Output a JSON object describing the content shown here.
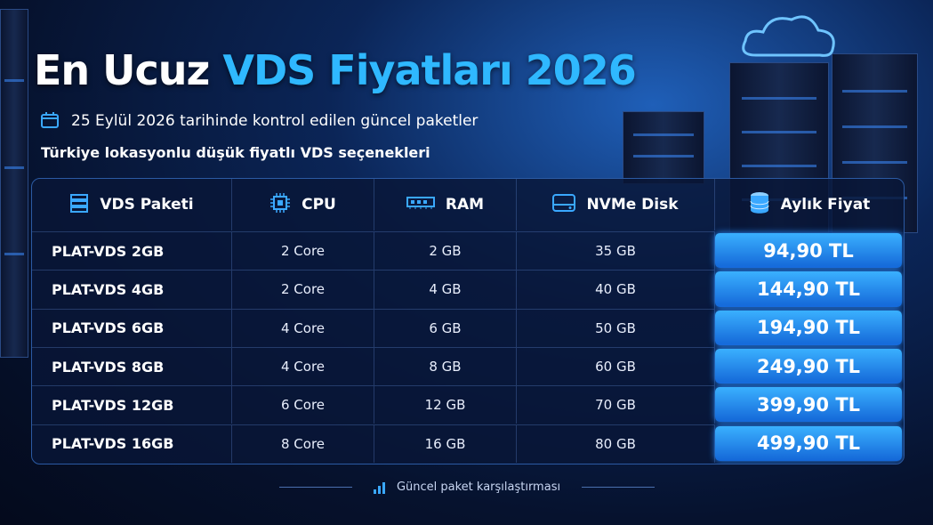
{
  "header": {
    "title": [
      "En Ucuz",
      "VDS Fiyatları 2026"
    ],
    "subtitle": "25 Eylül 2026 tarihinde kontrol edilen güncel paketler",
    "tagline": "Türkiye lokasyonlu düşük fiyatlı VDS seçenekleri"
  },
  "table": {
    "columns": [
      "VDS Paketi",
      "CPU",
      "RAM",
      "NVMe Disk",
      "Aylık Fiyat"
    ],
    "rows": [
      [
        "PLAT-VDS 2GB",
        "2 Core",
        "2 GB",
        "35 GB",
        "94,90 TL"
      ],
      [
        "PLAT-VDS 4GB",
        "2 Core",
        "4 GB",
        "40 GB",
        "144,90 TL"
      ],
      [
        "PLAT-VDS 6GB",
        "4 Core",
        "6 GB",
        "50 GB",
        "194,90 TL"
      ],
      [
        "PLAT-VDS 8GB",
        "4 Core",
        "8 GB",
        "60 GB",
        "249,90 TL"
      ],
      [
        "PLAT-VDS 12GB",
        "6 Core",
        "12 GB",
        "70 GB",
        "399,90 TL"
      ],
      [
        "PLAT-VDS 16GB",
        "8 Core",
        "16 GB",
        "80 GB",
        "499,90 TL"
      ]
    ]
  },
  "footer": "Güncel paket karşılaştırması"
}
